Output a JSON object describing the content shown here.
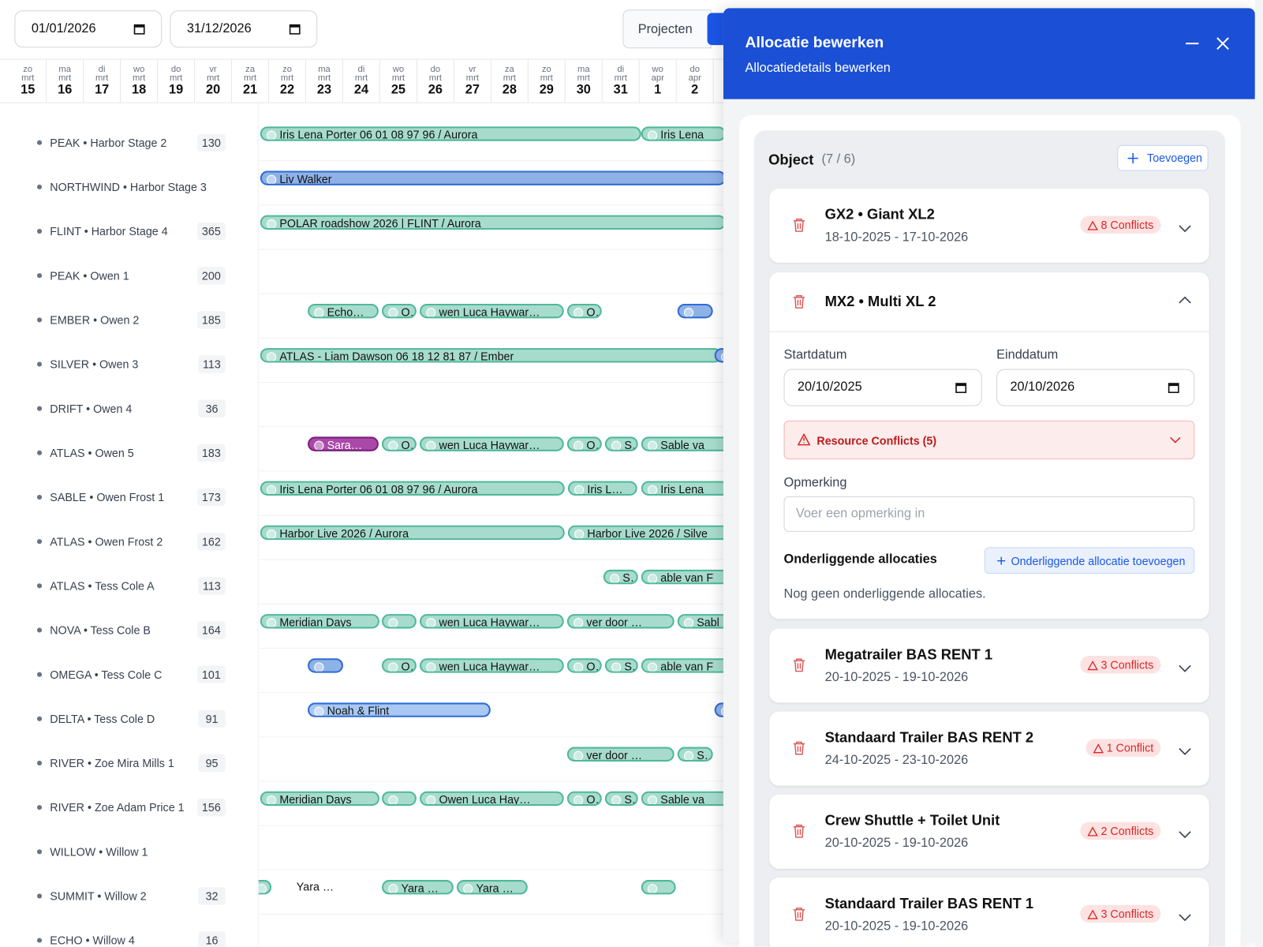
{
  "filters": {
    "start_date": "01/01/2026",
    "end_date": "31/12/2026"
  },
  "tabs": [
    "Projecten"
  ],
  "days": [
    {
      "weekday": "zo",
      "month": "mrt",
      "day": 15
    },
    {
      "weekday": "ma",
      "month": "mrt",
      "day": 16
    },
    {
      "weekday": "di",
      "month": "mrt",
      "day": 17
    },
    {
      "weekday": "wo",
      "month": "mrt",
      "day": 18
    },
    {
      "weekday": "do",
      "month": "mrt",
      "day": 19
    },
    {
      "weekday": "vr",
      "month": "mrt",
      "day": 20
    },
    {
      "weekday": "za",
      "month": "mrt",
      "day": 21
    },
    {
      "weekday": "zo",
      "month": "mrt",
      "day": 22
    },
    {
      "weekday": "ma",
      "month": "mrt",
      "day": 23
    },
    {
      "weekday": "di",
      "month": "mrt",
      "day": 24
    },
    {
      "weekday": "wo",
      "month": "mrt",
      "day": 25
    },
    {
      "weekday": "do",
      "month": "mrt",
      "day": 26
    },
    {
      "weekday": "vr",
      "month": "mrt",
      "day": 27
    },
    {
      "weekday": "za",
      "month": "mrt",
      "day": 28
    },
    {
      "weekday": "zo",
      "month": "mrt",
      "day": 29
    },
    {
      "weekday": "ma",
      "month": "mrt",
      "day": 30
    },
    {
      "weekday": "di",
      "month": "mrt",
      "day": 31
    },
    {
      "weekday": "wo",
      "month": "apr",
      "day": 1
    },
    {
      "weekday": "do",
      "month": "apr",
      "day": 2
    }
  ],
  "rows": [
    {
      "name": "PEAK • Harbor Stage 2",
      "count": 130,
      "bars": [
        "Iris Lena Porter 06 01 08 97 96 / Aurora",
        "Iris Lena"
      ]
    },
    {
      "name": "NORTHWIND • Harbor Stage 3",
      "bars": [
        "Liv Walker"
      ]
    },
    {
      "name": "FLINT • Harbor Stage 4",
      "count": 365,
      "bars": [
        "POLAR roadshow 2026 | FLINT / Aurora"
      ]
    },
    {
      "name": "PEAK • Owen 1",
      "count": 200,
      "bars": []
    },
    {
      "name": "EMBER • Owen 2",
      "count": 185,
      "bars": [
        "Echo…",
        "O…",
        "wen Luca Haywar…",
        "O…"
      ]
    },
    {
      "name": "SILVER • Owen 3",
      "count": 113,
      "bars": [
        "ATLAS - Liam Dawson 06 18 12 81 87 / Ember"
      ]
    },
    {
      "name": "DRIFT • Owen 4",
      "count": 36,
      "bars": []
    },
    {
      "name": "ATLAS • Owen 5",
      "count": 183,
      "bars": [
        "Sara…",
        "O…",
        "wen Luca Haywar…",
        "O…",
        "S…",
        "Sable va"
      ]
    },
    {
      "name": "SABLE • Owen Frost 1",
      "count": 173,
      "bars": [
        "Iris Lena Porter 06 01 08 97 96 / Aurora",
        "Iris L…",
        "Iris Lena"
      ]
    },
    {
      "name": "ATLAS • Owen Frost 2",
      "count": 162,
      "bars": [
        "Harbor Live 2026 / Aurora",
        "Harbor Live 2026 / Silve"
      ]
    },
    {
      "name": "ATLAS • Tess Cole A",
      "count": 113,
      "bars": [
        "S…",
        "able van F"
      ]
    },
    {
      "name": "NOVA • Tess Cole B",
      "count": 164,
      "bars": [
        "Meridian Days",
        "wen Luca Haywar…",
        "ver door …",
        "Sabl"
      ]
    },
    {
      "name": "OMEGA • Tess Cole C",
      "count": 101,
      "bars": [
        "O…",
        "wen Luca Haywar…",
        "O…",
        "S…",
        "able van F"
      ]
    },
    {
      "name": "DELTA • Tess Cole D",
      "count": 91,
      "bars": [
        "Noah & Flint"
      ]
    },
    {
      "name": "RIVER • Zoe Mira Mills 1",
      "count": 95,
      "bars": [
        "ver door …",
        "S…"
      ]
    },
    {
      "name": "RIVER • Zoe Adam Price 1",
      "count": 156,
      "bars": [
        "Meridian Days",
        "Owen Luca Hay…",
        "O…",
        "S…",
        "Sable va"
      ]
    },
    {
      "name": "WILLOW • Willow 1",
      "bars": []
    },
    {
      "name": "SUMMIT • Willow 2",
      "count": 32,
      "bars": [
        "Yara …",
        "Yara …",
        "Yara …"
      ]
    },
    {
      "name": "ECHO • Willow 4",
      "count": 16,
      "bars": []
    }
  ],
  "panel": {
    "title": "Allocatie bewerken",
    "subtitle": "Allocatiedetails bewerken",
    "section_title": "Object",
    "section_count": "(7 / 6)",
    "add_button": "Toevoegen",
    "items": [
      {
        "name": "GX2 • Giant XL2",
        "dates": "18-10-2025 - 17-10-2026",
        "conflicts": "8 Conflicts"
      },
      {
        "name": "Megatrailer BAS RENT 1",
        "dates": "20-10-2025 - 19-10-2026",
        "conflicts": "3 Conflicts"
      },
      {
        "name": "Standaard Trailer BAS RENT 2",
        "dates": "24-10-2025 - 23-10-2026",
        "conflicts": "1 Conflict"
      },
      {
        "name": "Crew Shuttle + Toilet Unit",
        "dates": "20-10-2025 - 19-10-2026",
        "conflicts": "2 Conflicts"
      },
      {
        "name": "Standaard Trailer BAS RENT 1",
        "dates": "20-10-2025 - 19-10-2026",
        "conflicts": "3 Conflicts"
      }
    ],
    "expanded": {
      "name": "MX2 • Multi XL 2",
      "start_label": "Startdatum",
      "start_value": "20/10/2025",
      "end_label": "Einddatum",
      "end_value": "20/10/2026",
      "conflicts_title": "Resource Conflicts (5)",
      "remark_label": "Opmerking",
      "remark_placeholder": "Voer een opmerking in",
      "sub_title": "Onderliggende allocaties",
      "sub_button": "Onderliggende allocatie toevoegen",
      "sub_empty": "Nog geen onderliggende allocaties."
    }
  }
}
